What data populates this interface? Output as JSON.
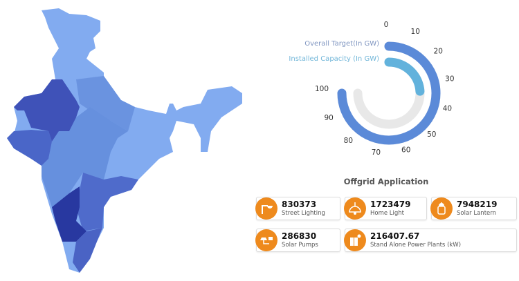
{
  "chart_data": {
    "type": "radial-bar",
    "axis_ticks": [
      "0",
      "10",
      "20",
      "30",
      "40",
      "50",
      "60",
      "70",
      "80",
      "90",
      "100"
    ],
    "range": [
      0,
      100
    ],
    "series": [
      {
        "name": "Overall Target(In GW)",
        "value": 100,
        "color": "#5b8ad8"
      },
      {
        "name": "Installed Capacity (In GW)",
        "value": 32,
        "color": "#62b2dc"
      }
    ],
    "track_color": "#e8e8e8"
  },
  "offgrid": {
    "title": "Offgrid Application",
    "items": [
      {
        "value": "830373",
        "label": "Street Lighting",
        "icon": "street-light-icon"
      },
      {
        "value": "1723479",
        "label": "Home Light",
        "icon": "pendant-lamp-icon"
      },
      {
        "value": "7948219",
        "label": "Solar Lantern",
        "icon": "lantern-icon"
      },
      {
        "value": "286830",
        "label": "Solar Pumps",
        "icon": "solar-pump-icon"
      },
      {
        "value": "216407.67",
        "label": "Stand Alone Power Plants (kW)",
        "icon": "solar-panel-icon"
      }
    ],
    "accent": "#ee8a1d"
  },
  "map": {
    "colors": [
      "#82abf0",
      "#3f52b8",
      "#4a66c8",
      "#6690de",
      "#6a93e0",
      "#4f6bcb",
      "#2838a0",
      "#4a63c4"
    ]
  }
}
